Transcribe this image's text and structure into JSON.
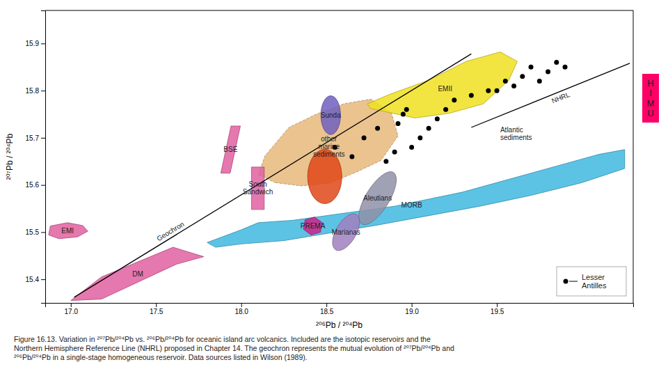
{
  "chart_data": {
    "type": "scatter",
    "x_label": "²⁰⁶Pb / ²⁰⁴Pb",
    "y_label": "²⁰⁷Pb / ²⁰⁴Pb",
    "xlim": [
      16.85,
      20.3
    ],
    "ylim": [
      15.35,
      15.97
    ],
    "xticks": [
      {
        "value": 17.0,
        "label": "17.0"
      },
      17.5,
      {
        "value": 18.0,
        "label": "18.0"
      },
      18.5,
      {
        "value": 19.0,
        "label": "19.0"
      },
      19.5
    ],
    "yticks": [
      15.4,
      15.5,
      15.6,
      15.7,
      15.8,
      15.9
    ],
    "grid": false,
    "legend": "lower right",
    "series": [
      {
        "name": "Lesser\nAntilles",
        "type": "scatter",
        "color": "#000000",
        "marker": "circle",
        "x": [
          18.55,
          18.65,
          18.72,
          18.8,
          18.85,
          18.9,
          18.92,
          18.95,
          18.97,
          19.0,
          19.05,
          19.1,
          19.15,
          19.2,
          19.25,
          19.35,
          19.45,
          19.5,
          19.55,
          19.6,
          19.65,
          19.7,
          19.75,
          19.8,
          19.85,
          19.9
        ],
        "values": [
          15.68,
          15.66,
          15.7,
          15.72,
          15.65,
          15.67,
          15.73,
          15.75,
          15.76,
          15.68,
          15.7,
          15.72,
          15.74,
          15.76,
          15.78,
          15.79,
          15.8,
          15.8,
          15.82,
          15.81,
          15.83,
          15.85,
          15.82,
          15.84,
          15.86,
          15.85
        ]
      }
    ],
    "regions": [
      {
        "name": "MORB",
        "type": "polygon",
        "color": "#40b8e0",
        "x": [
          18.1,
          18.3,
          18.5,
          18.7,
          18.9,
          19.1,
          19.3,
          19.5,
          19.7,
          19.9,
          20.1,
          20.25,
          20.25,
          20.0,
          19.7,
          19.4,
          19.1,
          18.8,
          18.5,
          18.25,
          18.0,
          17.85,
          17.8,
          18.0
        ],
        "y": [
          15.52,
          15.525,
          15.535,
          15.545,
          15.555,
          15.57,
          15.585,
          15.605,
          15.625,
          15.645,
          15.665,
          15.675,
          15.635,
          15.605,
          15.578,
          15.555,
          15.535,
          15.515,
          15.497,
          15.482,
          15.475,
          15.468,
          15.478,
          15.505
        ]
      },
      {
        "name": "DM",
        "type": "polygon",
        "color": "#e060a0",
        "x": [
          17.0,
          17.18,
          17.62,
          17.78,
          17.6,
          17.18
        ],
        "y": [
          15.355,
          15.358,
          15.432,
          15.448,
          15.468,
          15.405
        ]
      },
      {
        "name": "EMI",
        "type": "polygon",
        "color": "#e060a0",
        "x": [
          16.87,
          16.93,
          17.04,
          17.1,
          17.07,
          16.98,
          16.88
        ],
        "y": [
          15.494,
          15.486,
          15.49,
          15.502,
          15.514,
          15.52,
          15.513
        ]
      },
      {
        "name": "BSE",
        "type": "polygon",
        "color": "#e060a0",
        "x": [
          17.88,
          17.935,
          17.995,
          17.94
        ],
        "y": [
          15.625,
          15.625,
          15.725,
          15.725
        ]
      },
      {
        "name": "other\nmarine\nsediments",
        "type": "polygon",
        "color": "#e8b87a",
        "line_style": "dashed",
        "x": [
          18.2,
          18.35,
          18.52,
          18.68,
          18.82,
          18.92,
          18.88,
          18.76,
          18.6,
          18.44,
          18.28,
          18.14,
          18.1
        ],
        "y": [
          15.605,
          15.598,
          15.604,
          15.628,
          15.652,
          15.704,
          15.754,
          15.782,
          15.772,
          15.75,
          15.722,
          15.662,
          15.622
        ]
      },
      {
        "name": "EMII",
        "type": "polygon",
        "color": "#f0e020",
        "x": [
          18.76,
          19.02,
          19.22,
          19.42,
          19.57,
          19.62,
          19.52,
          19.32,
          19.1,
          18.87,
          18.74
        ],
        "y": [
          15.762,
          15.742,
          15.752,
          15.772,
          15.822,
          15.862,
          15.882,
          15.862,
          15.822,
          15.792,
          15.772
        ]
      },
      {
        "name": "South\nSandwich",
        "type": "polygon",
        "color": "#e060a0",
        "x": [
          18.06,
          18.135,
          18.135,
          18.06
        ],
        "y": [
          15.548,
          15.548,
          15.638,
          15.638
        ]
      },
      {
        "type": "ellipse",
        "color": "#e04818",
        "center": [
          18.49,
          15.618
        ],
        "width": 0.2,
        "height": 0.115,
        "angle": 0
      },
      {
        "name": "Aleutians",
        "type": "ellipse",
        "color": "#9090a8",
        "center": [
          18.8,
          15.572
        ],
        "width": 0.235,
        "height": 0.075,
        "angle": 22
      },
      {
        "name": "Marianas",
        "type": "ellipse",
        "color": "#a080c0",
        "center": [
          18.615,
          15.5
        ],
        "width": 0.165,
        "height": 0.062,
        "angle": 18
      },
      {
        "name": "Sunda",
        "type": "ellipse",
        "color": "#7060c0",
        "center": [
          18.525,
          15.748
        ],
        "width": 0.115,
        "height": 0.082,
        "angle": 0
      },
      {
        "name": "PREMA",
        "type": "polygon",
        "color": "#cc2288",
        "x": [
          18.41,
          18.465,
          18.475,
          18.43,
          18.375,
          18.365
        ],
        "y": [
          15.494,
          15.5,
          15.52,
          15.532,
          15.526,
          15.506
        ]
      }
    ],
    "lines": [
      {
        "name": "Geochron",
        "color": "#000000",
        "x": [
          17.02,
          19.35
        ],
        "y": [
          15.362,
          15.878
        ]
      },
      {
        "name": "NHRL",
        "color": "#000000",
        "x": [
          19.35,
          20.28
        ],
        "y": [
          15.722,
          15.858
        ]
      }
    ],
    "annotations": [
      {
        "text": "Atlantic\nsediments",
        "x": 19.52,
        "y": 15.708
      }
    ],
    "side_label": {
      "text": "H\nI\nM\nU",
      "color": "#ff0066"
    },
    "caption": "Figure 16.13. Variation in ²⁰⁷Pb/²⁰⁴Pb vs. ²⁰⁶Pb/²⁰⁴Pb for oceanic island arc volcanics. Included are the isotopic reservoirs and the\nNorthern Hemisphere Reference Line (NHRL) proposed in Chapter 14. The geochron represents the mutual evolution of ²⁰⁷Pb/²⁰⁴Pb and\n²⁰⁶Pb/²⁰⁴Pb in a single-stage homogeneous reservoir. Data sources listed in Wilson (1989)."
  }
}
